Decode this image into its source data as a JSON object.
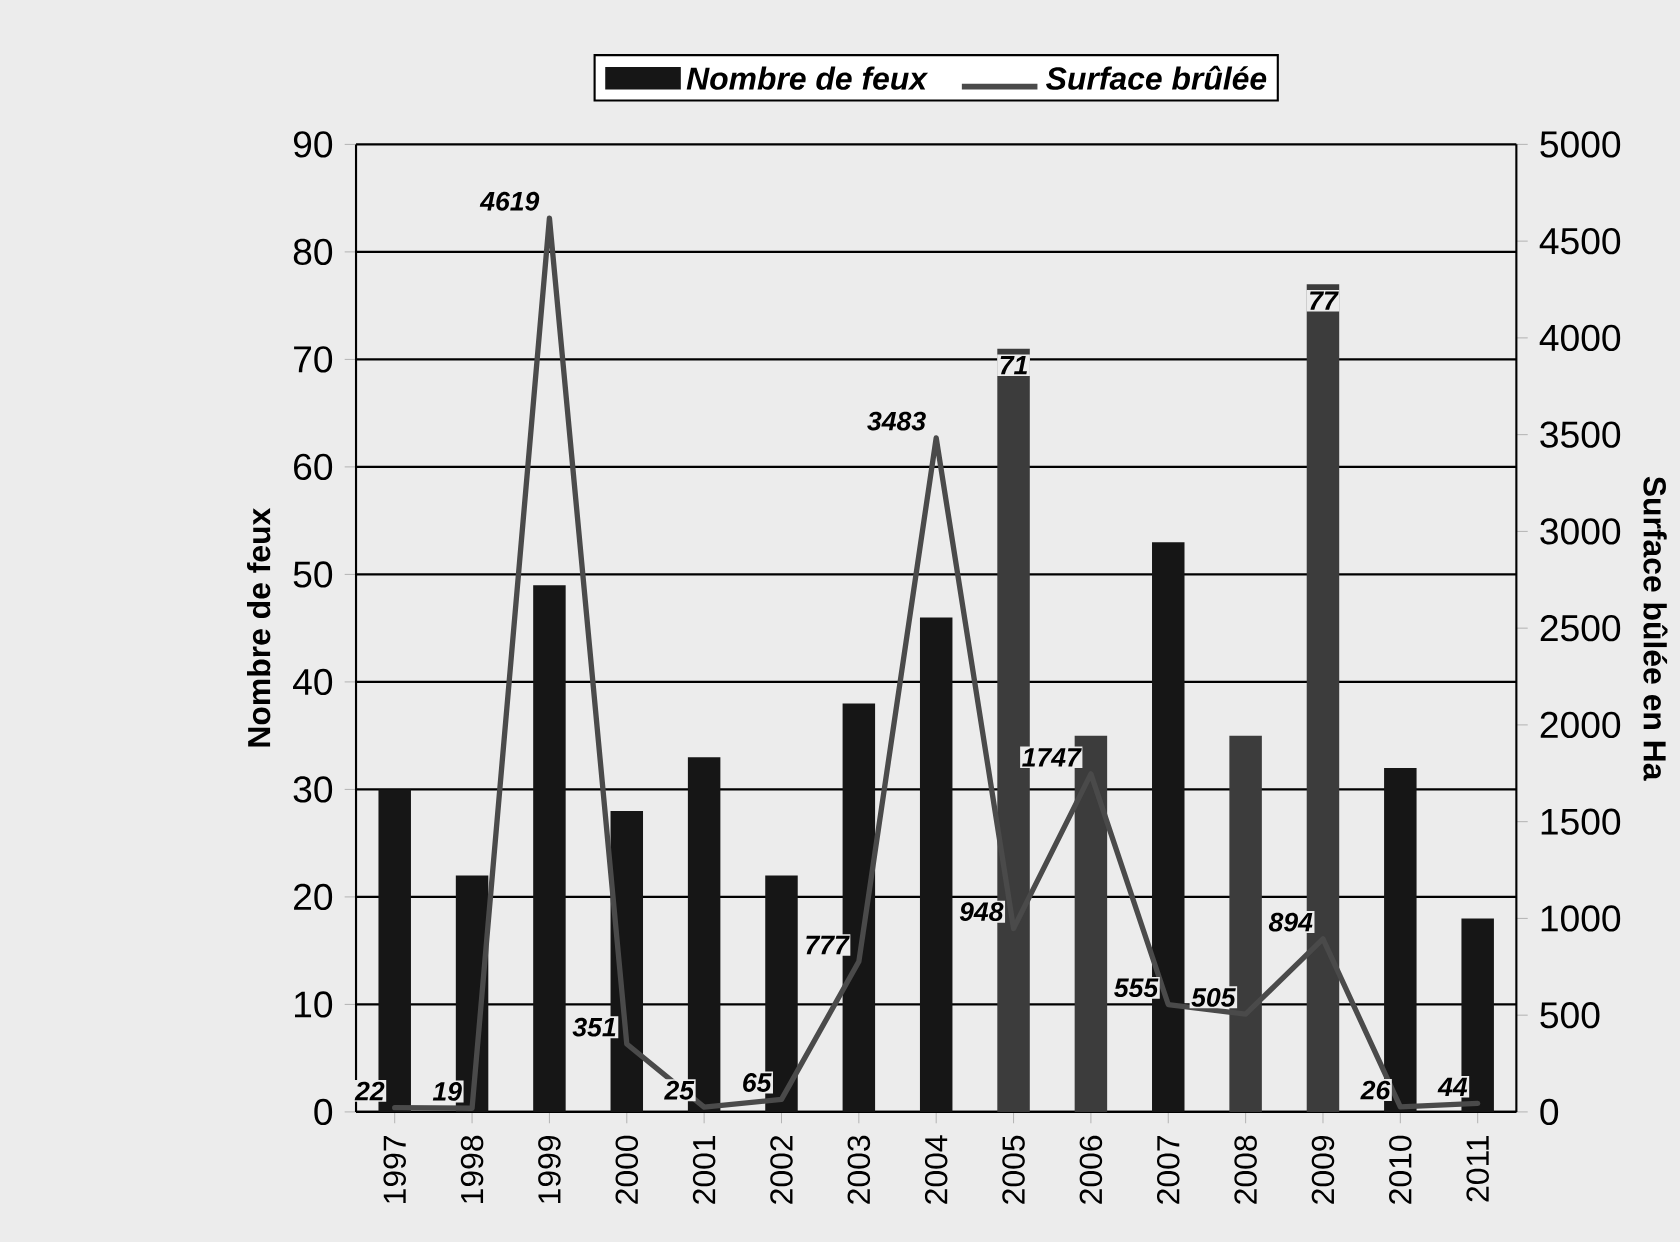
{
  "chart_data": {
    "type": "bar",
    "categories": [
      "1997",
      "1998",
      "1999",
      "2000",
      "2001",
      "2002",
      "2003",
      "2004",
      "2005",
      "2006",
      "2007",
      "2008",
      "2009",
      "2010",
      "2011"
    ],
    "series": [
      {
        "name": "Nombre de feux",
        "colors": [
          "#161616",
          "#161616",
          "#161616",
          "#161616",
          "#161616",
          "#161616",
          "#161616",
          "#161616",
          "#3c3c3c",
          "#3c3c3c",
          "#161616",
          "#3c3c3c",
          "#3c3c3c",
          "#161616",
          "#161616"
        ],
        "values": [
          30,
          22,
          49,
          28,
          33,
          22,
          38,
          46,
          71,
          35,
          53,
          35,
          77,
          32,
          18
        ],
        "value_labels": [
          null,
          null,
          null,
          null,
          null,
          null,
          null,
          null,
          "71",
          null,
          null,
          null,
          "77",
          null,
          null
        ]
      },
      {
        "name": "Surface brûlée",
        "type": "line",
        "axis": "y2",
        "color": "#4a4a4a",
        "values": [
          22,
          19,
          4619,
          351,
          25,
          65,
          777,
          3483,
          948,
          1747,
          555,
          505,
          894,
          26,
          44
        ],
        "value_labels": [
          "22",
          "19",
          "4619",
          "351",
          "25",
          "65",
          "777",
          "3483",
          "948",
          "1747",
          "555",
          "505",
          "894",
          "26",
          "44"
        ]
      }
    ],
    "ylabel": "Nombre de feux",
    "y2label": "Surface bûlée en Ha",
    "ylim": [
      0,
      90
    ],
    "yticks": [
      0,
      10,
      20,
      30,
      40,
      50,
      60,
      70,
      80,
      90
    ],
    "y2lim": [
      0,
      5000
    ],
    "y2ticks": [
      0,
      500,
      1000,
      1500,
      2000,
      2500,
      3000,
      3500,
      4000,
      4500,
      5000
    ],
    "grid": "y",
    "legend": "top",
    "marker": "none"
  }
}
